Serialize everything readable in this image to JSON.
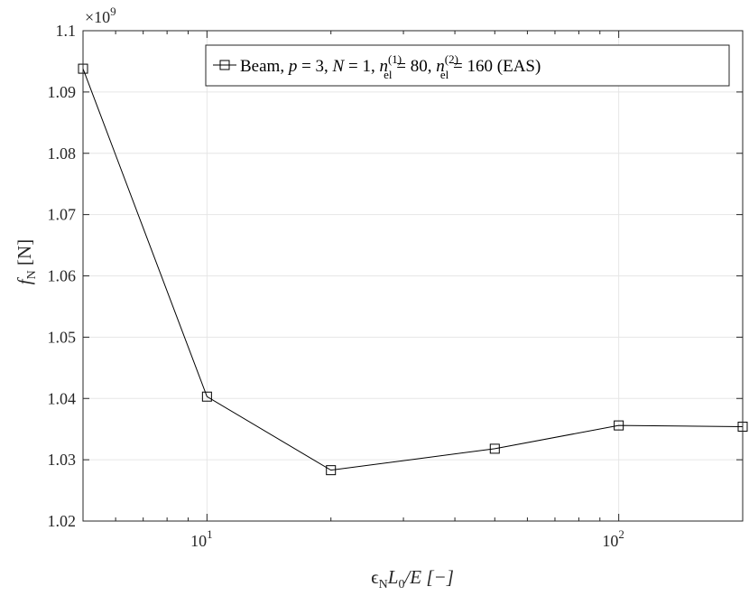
{
  "chart_data": {
    "type": "line",
    "x_scale": "log",
    "xlim": [
      5,
      200
    ],
    "ylim": [
      1.02,
      1.1
    ],
    "y_multiplier_label": "×10",
    "y_multiplier_exponent": "9",
    "x_ticks": [
      {
        "value": 10,
        "base": "10",
        "exp": "1"
      },
      {
        "value": 100,
        "base": "10",
        "exp": "2"
      }
    ],
    "y_ticks": [
      {
        "value": 1.02,
        "label": "1.02"
      },
      {
        "value": 1.03,
        "label": "1.03"
      },
      {
        "value": 1.04,
        "label": "1.04"
      },
      {
        "value": 1.05,
        "label": "1.05"
      },
      {
        "value": 1.06,
        "label": "1.06"
      },
      {
        "value": 1.07,
        "label": "1.07"
      },
      {
        "value": 1.08,
        "label": "1.08"
      },
      {
        "value": 1.09,
        "label": "1.09"
      },
      {
        "value": 1.1,
        "label": "1.1"
      }
    ],
    "xlabel": {
      "epsilon": "ϵ",
      "sub_n": "N",
      "L": "L",
      "sub_0": "0",
      "rest": "/E [−]"
    },
    "ylabel": {
      "f": "f",
      "sub": "N",
      "unit": " [N]"
    },
    "grid": true,
    "legend_location": "top-right",
    "legend": {
      "text1": "Beam, ",
      "p": "p",
      "text2": " = 3, ",
      "N": "N",
      "text3": " = 1, ",
      "n": "n",
      "sub": "el",
      "sup1": "(1)",
      "text4": " = 80, ",
      "sup2": "(2)",
      "text5": " = 160 (EAS)"
    },
    "series": [
      {
        "x": [
          5,
          10,
          20,
          50,
          100,
          200
        ],
        "y": [
          1.0938,
          1.0403,
          1.0283,
          1.0318,
          1.0356,
          1.0354
        ],
        "marker": "square",
        "color": "#000000"
      }
    ]
  }
}
